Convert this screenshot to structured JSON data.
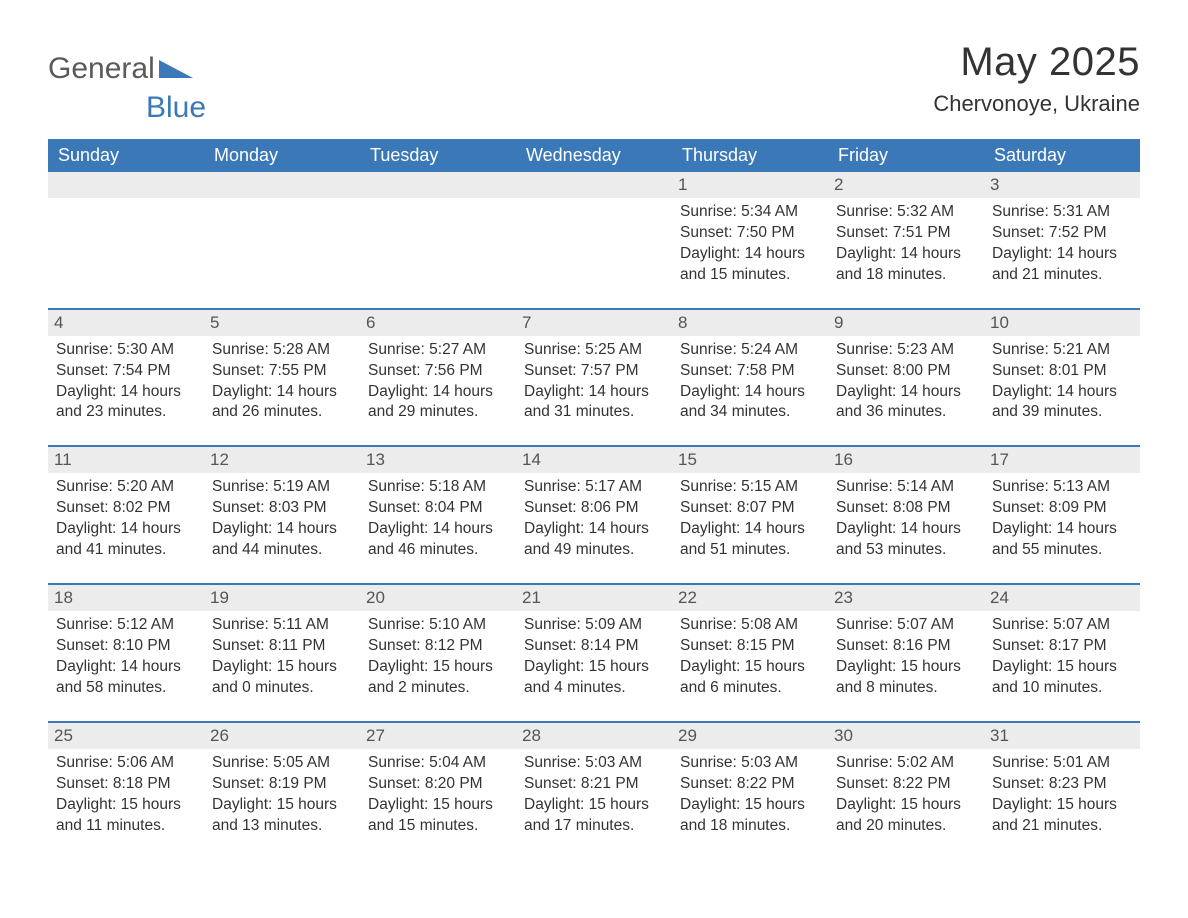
{
  "brand": {
    "part1": "General",
    "part2": "Blue"
  },
  "title": "May 2025",
  "location": "Chervonoye, Ukraine",
  "colors": {
    "header_bg": "#3b78b8",
    "header_text": "#ffffff",
    "daynum_bg": "#ececec",
    "border": "#3b78b8",
    "body_text": "#333333"
  },
  "dow": [
    "Sunday",
    "Monday",
    "Tuesday",
    "Wednesday",
    "Thursday",
    "Friday",
    "Saturday"
  ],
  "weeks": [
    [
      {
        "n": "",
        "sr": "",
        "ss": "",
        "dl": ""
      },
      {
        "n": "",
        "sr": "",
        "ss": "",
        "dl": ""
      },
      {
        "n": "",
        "sr": "",
        "ss": "",
        "dl": ""
      },
      {
        "n": "",
        "sr": "",
        "ss": "",
        "dl": ""
      },
      {
        "n": "1",
        "sr": "Sunrise: 5:34 AM",
        "ss": "Sunset: 7:50 PM",
        "dl": "Daylight: 14 hours and 15 minutes."
      },
      {
        "n": "2",
        "sr": "Sunrise: 5:32 AM",
        "ss": "Sunset: 7:51 PM",
        "dl": "Daylight: 14 hours and 18 minutes."
      },
      {
        "n": "3",
        "sr": "Sunrise: 5:31 AM",
        "ss": "Sunset: 7:52 PM",
        "dl": "Daylight: 14 hours and 21 minutes."
      }
    ],
    [
      {
        "n": "4",
        "sr": "Sunrise: 5:30 AM",
        "ss": "Sunset: 7:54 PM",
        "dl": "Daylight: 14 hours and 23 minutes."
      },
      {
        "n": "5",
        "sr": "Sunrise: 5:28 AM",
        "ss": "Sunset: 7:55 PM",
        "dl": "Daylight: 14 hours and 26 minutes."
      },
      {
        "n": "6",
        "sr": "Sunrise: 5:27 AM",
        "ss": "Sunset: 7:56 PM",
        "dl": "Daylight: 14 hours and 29 minutes."
      },
      {
        "n": "7",
        "sr": "Sunrise: 5:25 AM",
        "ss": "Sunset: 7:57 PM",
        "dl": "Daylight: 14 hours and 31 minutes."
      },
      {
        "n": "8",
        "sr": "Sunrise: 5:24 AM",
        "ss": "Sunset: 7:58 PM",
        "dl": "Daylight: 14 hours and 34 minutes."
      },
      {
        "n": "9",
        "sr": "Sunrise: 5:23 AM",
        "ss": "Sunset: 8:00 PM",
        "dl": "Daylight: 14 hours and 36 minutes."
      },
      {
        "n": "10",
        "sr": "Sunrise: 5:21 AM",
        "ss": "Sunset: 8:01 PM",
        "dl": "Daylight: 14 hours and 39 minutes."
      }
    ],
    [
      {
        "n": "11",
        "sr": "Sunrise: 5:20 AM",
        "ss": "Sunset: 8:02 PM",
        "dl": "Daylight: 14 hours and 41 minutes."
      },
      {
        "n": "12",
        "sr": "Sunrise: 5:19 AM",
        "ss": "Sunset: 8:03 PM",
        "dl": "Daylight: 14 hours and 44 minutes."
      },
      {
        "n": "13",
        "sr": "Sunrise: 5:18 AM",
        "ss": "Sunset: 8:04 PM",
        "dl": "Daylight: 14 hours and 46 minutes."
      },
      {
        "n": "14",
        "sr": "Sunrise: 5:17 AM",
        "ss": "Sunset: 8:06 PM",
        "dl": "Daylight: 14 hours and 49 minutes."
      },
      {
        "n": "15",
        "sr": "Sunrise: 5:15 AM",
        "ss": "Sunset: 8:07 PM",
        "dl": "Daylight: 14 hours and 51 minutes."
      },
      {
        "n": "16",
        "sr": "Sunrise: 5:14 AM",
        "ss": "Sunset: 8:08 PM",
        "dl": "Daylight: 14 hours and 53 minutes."
      },
      {
        "n": "17",
        "sr": "Sunrise: 5:13 AM",
        "ss": "Sunset: 8:09 PM",
        "dl": "Daylight: 14 hours and 55 minutes."
      }
    ],
    [
      {
        "n": "18",
        "sr": "Sunrise: 5:12 AM",
        "ss": "Sunset: 8:10 PM",
        "dl": "Daylight: 14 hours and 58 minutes."
      },
      {
        "n": "19",
        "sr": "Sunrise: 5:11 AM",
        "ss": "Sunset: 8:11 PM",
        "dl": "Daylight: 15 hours and 0 minutes."
      },
      {
        "n": "20",
        "sr": "Sunrise: 5:10 AM",
        "ss": "Sunset: 8:12 PM",
        "dl": "Daylight: 15 hours and 2 minutes."
      },
      {
        "n": "21",
        "sr": "Sunrise: 5:09 AM",
        "ss": "Sunset: 8:14 PM",
        "dl": "Daylight: 15 hours and 4 minutes."
      },
      {
        "n": "22",
        "sr": "Sunrise: 5:08 AM",
        "ss": "Sunset: 8:15 PM",
        "dl": "Daylight: 15 hours and 6 minutes."
      },
      {
        "n": "23",
        "sr": "Sunrise: 5:07 AM",
        "ss": "Sunset: 8:16 PM",
        "dl": "Daylight: 15 hours and 8 minutes."
      },
      {
        "n": "24",
        "sr": "Sunrise: 5:07 AM",
        "ss": "Sunset: 8:17 PM",
        "dl": "Daylight: 15 hours and 10 minutes."
      }
    ],
    [
      {
        "n": "25",
        "sr": "Sunrise: 5:06 AM",
        "ss": "Sunset: 8:18 PM",
        "dl": "Daylight: 15 hours and 11 minutes."
      },
      {
        "n": "26",
        "sr": "Sunrise: 5:05 AM",
        "ss": "Sunset: 8:19 PM",
        "dl": "Daylight: 15 hours and 13 minutes."
      },
      {
        "n": "27",
        "sr": "Sunrise: 5:04 AM",
        "ss": "Sunset: 8:20 PM",
        "dl": "Daylight: 15 hours and 15 minutes."
      },
      {
        "n": "28",
        "sr": "Sunrise: 5:03 AM",
        "ss": "Sunset: 8:21 PM",
        "dl": "Daylight: 15 hours and 17 minutes."
      },
      {
        "n": "29",
        "sr": "Sunrise: 5:03 AM",
        "ss": "Sunset: 8:22 PM",
        "dl": "Daylight: 15 hours and 18 minutes."
      },
      {
        "n": "30",
        "sr": "Sunrise: 5:02 AM",
        "ss": "Sunset: 8:22 PM",
        "dl": "Daylight: 15 hours and 20 minutes."
      },
      {
        "n": "31",
        "sr": "Sunrise: 5:01 AM",
        "ss": "Sunset: 8:23 PM",
        "dl": "Daylight: 15 hours and 21 minutes."
      }
    ]
  ]
}
